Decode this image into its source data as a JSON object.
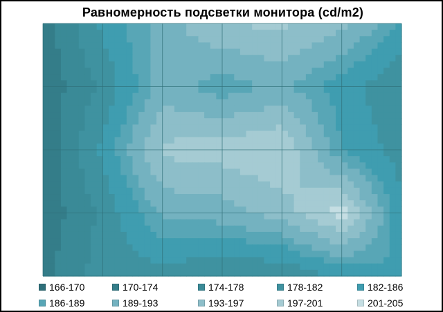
{
  "chart_data": {
    "type": "surface-contour",
    "title": "Равномерность  подсветки монитора (cd/m2)",
    "rows": 5,
    "cols": 7,
    "values": [
      [
        172,
        183,
        191,
        197,
        198,
        194,
        186
      ],
      [
        171,
        179,
        191,
        187,
        190,
        184,
        178
      ],
      [
        171,
        183,
        198,
        199,
        201,
        186,
        180
      ],
      [
        171,
        179,
        190,
        191,
        195,
        203,
        183
      ],
      [
        173,
        180,
        180,
        178,
        178,
        183,
        186
      ]
    ],
    "legend": [
      {
        "label": "166-170",
        "min": 166,
        "max": 170,
        "color": "#2e6f7a"
      },
      {
        "label": "170-174",
        "min": 170,
        "max": 174,
        "color": "#347d89"
      },
      {
        "label": "174-178",
        "min": 174,
        "max": 178,
        "color": "#3a8a97"
      },
      {
        "label": "178-182",
        "min": 178,
        "max": 182,
        "color": "#3f92a0"
      },
      {
        "label": "182-186",
        "min": 182,
        "max": 186,
        "color": "#3f9db0"
      },
      {
        "label": "186-189",
        "min": 186,
        "max": 189,
        "color": "#58a6b6"
      },
      {
        "label": "189-193",
        "min": 189,
        "max": 193,
        "color": "#74b2c0"
      },
      {
        "label": "193-197",
        "min": 193,
        "max": 197,
        "color": "#8dbec9"
      },
      {
        "label": "197-201",
        "min": 197,
        "max": 201,
        "color": "#a5cbd3"
      },
      {
        "label": "201-205",
        "min": 201,
        "max": 205,
        "color": "#c5dee3"
      }
    ]
  }
}
